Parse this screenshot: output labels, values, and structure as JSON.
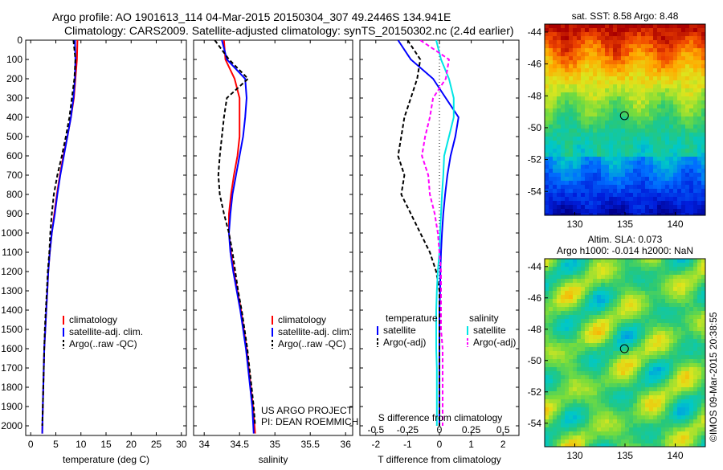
{
  "header": {
    "line1": "Argo profile: AO 1901613_114 04-Mar-2015 20150304_307 49.2446S 134.941E",
    "line2": "Climatology: CARS2009. Satellite-adjusted climatology: synTS_20150302.nc (2.4d earlier)"
  },
  "colors": {
    "climatology": "#ff0000",
    "satellite": "#0000ff",
    "argo": "#000000",
    "sal_satellite": "#00e5e5",
    "sal_argo": "#ff00ff"
  },
  "credits": {
    "line1": "US ARGO PROJECT",
    "line2": "PI: DEAN ROEMMICH"
  },
  "imos_stamp": "©IMOS 09-Mar-2015 20:38:55",
  "chart_data": [
    {
      "type": "line",
      "panel": "temperature",
      "xlabel": "temperature (deg C)",
      "xlim": [
        -1,
        31
      ],
      "xticks": [
        "0",
        "5",
        "10",
        "15",
        "20",
        "25",
        "30"
      ],
      "xtick_values": [
        0,
        5,
        10,
        15,
        20,
        25,
        30
      ],
      "ylim": [
        2050,
        0
      ],
      "yticks": [
        "0",
        "100",
        "200",
        "300",
        "400",
        "500",
        "600",
        "700",
        "800",
        "900",
        "1000",
        "1100",
        "1200",
        "1300",
        "1400",
        "1500",
        "1600",
        "1700",
        "1800",
        "1900",
        "2000"
      ],
      "ytick_values": [
        0,
        100,
        200,
        300,
        400,
        500,
        600,
        700,
        800,
        900,
        1000,
        1100,
        1200,
        1300,
        1400,
        1500,
        1600,
        1700,
        1800,
        1900,
        2000
      ],
      "legend": [
        "climatology",
        "satellite-adj. clim.",
        "Argo(..raw -QC)"
      ],
      "series": [
        {
          "name": "climatology",
          "style": "solid",
          "color": "#ff0000",
          "x": [
            9.3,
            9.2,
            8.9,
            8.6,
            8.0,
            7.3,
            6.5,
            5.8,
            5.2,
            4.7,
            4.2,
            3.8,
            3.5,
            3.3,
            3.1,
            2.9,
            2.7,
            2.6,
            2.5,
            2.4,
            2.3
          ],
          "y": [
            0,
            100,
            200,
            300,
            400,
            500,
            600,
            700,
            800,
            900,
            1000,
            1100,
            1200,
            1300,
            1400,
            1500,
            1600,
            1700,
            1800,
            1900,
            2040
          ]
        },
        {
          "name": "satellite-adj. clim.",
          "style": "solid",
          "color": "#0000ff",
          "x": [
            8.8,
            8.9,
            8.8,
            8.5,
            8.0,
            7.3,
            6.6,
            5.9,
            5.3,
            4.8,
            4.2,
            3.8,
            3.5,
            3.3,
            3.1,
            2.9,
            2.7,
            2.6,
            2.5,
            2.4,
            2.3
          ],
          "y": [
            0,
            100,
            200,
            300,
            400,
            500,
            600,
            700,
            800,
            900,
            1000,
            1100,
            1200,
            1300,
            1400,
            1500,
            1600,
            1700,
            1800,
            1900,
            2040
          ]
        },
        {
          "name": "Argo(..raw -QC)",
          "style": "dashed",
          "color": "#000000",
          "x": [
            8.5,
            8.9,
            8.7,
            8.2,
            7.7,
            7.0,
            6.2,
            5.3,
            4.6,
            4.2,
            3.9,
            3.7,
            3.4,
            3.2,
            3.0,
            2.8,
            2.7,
            2.6,
            2.5,
            2.4,
            2.3
          ],
          "y": [
            0,
            100,
            200,
            300,
            400,
            500,
            600,
            700,
            800,
            900,
            1000,
            1100,
            1200,
            1300,
            1400,
            1500,
            1600,
            1700,
            1800,
            1900,
            2000
          ]
        }
      ]
    },
    {
      "type": "line",
      "panel": "salinity",
      "xlabel": "salinity",
      "xlim": [
        33.85,
        36.1
      ],
      "xticks": [
        "34",
        "34.5",
        "35",
        "35.5",
        "36"
      ],
      "xtick_values": [
        34,
        34.5,
        35,
        35.5,
        36
      ],
      "ylim": [
        2050,
        0
      ],
      "legend": [
        "climatology",
        "satellite-adj. clim.",
        "Argo(..raw -QC)"
      ],
      "series": [
        {
          "name": "climatology",
          "style": "solid",
          "color": "#ff0000",
          "x": [
            34.28,
            34.3,
            34.43,
            34.5,
            34.5,
            34.5,
            34.47,
            34.42,
            34.38,
            34.35,
            34.35,
            34.38,
            34.42,
            34.47,
            34.52,
            34.56,
            34.6,
            34.63,
            34.66,
            34.69,
            34.72
          ],
          "y": [
            0,
            100,
            200,
            300,
            400,
            500,
            600,
            700,
            800,
            900,
            1000,
            1100,
            1200,
            1300,
            1400,
            1500,
            1600,
            1700,
            1800,
            1900,
            2040
          ]
        },
        {
          "name": "satellite-adj. clim.",
          "style": "solid",
          "color": "#0000ff",
          "x": [
            34.25,
            34.32,
            34.58,
            34.6,
            34.58,
            34.55,
            34.5,
            34.45,
            34.4,
            34.37,
            34.35,
            34.37,
            34.41,
            34.46,
            34.51,
            34.55,
            34.59,
            34.62,
            34.65,
            34.68,
            34.7
          ],
          "y": [
            0,
            100,
            200,
            300,
            400,
            500,
            600,
            700,
            800,
            900,
            1000,
            1100,
            1200,
            1300,
            1400,
            1500,
            1600,
            1700,
            1800,
            1900,
            2040
          ]
        },
        {
          "name": "Argo(..raw -QC)",
          "style": "dashed",
          "color": "#000000",
          "x": [
            34.15,
            34.35,
            34.62,
            34.32,
            34.28,
            34.25,
            34.22,
            34.2,
            34.22,
            34.28,
            34.35,
            34.4,
            34.44,
            34.48,
            34.53,
            34.57,
            34.61,
            34.64,
            34.67,
            34.7,
            34.72
          ],
          "y": [
            0,
            100,
            200,
            300,
            400,
            500,
            600,
            700,
            800,
            900,
            1000,
            1100,
            1200,
            1300,
            1400,
            1500,
            1600,
            1700,
            1800,
            1900,
            2000
          ]
        }
      ]
    },
    {
      "type": "line",
      "panel": "difference",
      "xlabel": "T difference from climatology",
      "top_xlabel": "S difference from climatology",
      "xlim": [
        -2.5,
        2.5
      ],
      "xticks": [
        "-2",
        "-1",
        "0",
        "1",
        "2"
      ],
      "xtick_values": [
        -2,
        -1,
        0,
        1,
        2
      ],
      "top_xticks": [
        "-0.5",
        "-0.25",
        "0",
        "0.25",
        "0.5"
      ],
      "top_xtick_values": [
        -0.5,
        -0.25,
        0,
        0.25,
        0.5
      ],
      "legend_groups": [
        {
          "title": "temperature",
          "items": [
            "satellite",
            "Argo(-adj)"
          ]
        },
        {
          "title": "salinity",
          "items": [
            "satellite",
            "Argo(-adj)"
          ]
        }
      ],
      "ylim": [
        2050,
        0
      ],
      "series": [
        {
          "name": "temperature satellite",
          "style": "solid",
          "color": "#0000ff",
          "x": [
            -1.3,
            -0.9,
            -0.2,
            0.2,
            0.6,
            0.5,
            0.35,
            0.25,
            0.18,
            0.12,
            0.08,
            0.05,
            0.03,
            0.02,
            0.0,
            0.0,
            0.0,
            0.0,
            0.0,
            0.0
          ],
          "y": [
            0,
            100,
            200,
            300,
            400,
            500,
            600,
            700,
            800,
            900,
            1000,
            1100,
            1200,
            1300,
            1400,
            1500,
            1600,
            1700,
            1800,
            2000
          ]
        },
        {
          "name": "temperature Argo(-adj)",
          "style": "dashed",
          "color": "#000000",
          "x": [
            -1.0,
            -0.6,
            -0.7,
            -0.9,
            -1.1,
            -1.2,
            -1.3,
            -1.1,
            -1.2,
            -0.9,
            -0.6,
            -0.3,
            -0.1,
            0.0,
            0.0,
            0.0,
            0.0,
            0.0,
            0.0,
            0.0
          ],
          "y": [
            0,
            100,
            200,
            300,
            400,
            500,
            600,
            700,
            800,
            900,
            1000,
            1100,
            1200,
            1300,
            1400,
            1500,
            1600,
            1700,
            1800,
            2000
          ]
        },
        {
          "name": "salinity satellite",
          "style": "solid",
          "color": "#00e5e5",
          "x": [
            -0.1,
            0.05,
            0.3,
            0.45,
            0.45,
            0.3,
            0.15,
            0.12,
            0.08,
            0.05,
            0.02,
            0.0,
            -0.05,
            -0.08,
            -0.1,
            -0.1,
            -0.1,
            -0.08,
            -0.08,
            -0.08
          ],
          "y": [
            0,
            100,
            200,
            300,
            400,
            500,
            600,
            700,
            800,
            900,
            1000,
            1100,
            1200,
            1300,
            1400,
            1500,
            1600,
            1700,
            1800,
            2000
          ]
        },
        {
          "name": "salinity Argo(-adj)",
          "style": "dashed",
          "color": "#ff00ff",
          "x": [
            -0.6,
            0.3,
            0.2,
            -0.2,
            -0.3,
            -0.45,
            -0.55,
            -0.35,
            -0.3,
            -0.15,
            -0.05,
            0.0,
            0.05,
            0.05,
            0.05,
            0.05,
            0.1,
            0.1,
            0.1,
            0.1
          ],
          "y": [
            0,
            100,
            200,
            300,
            400,
            500,
            600,
            700,
            800,
            900,
            1000,
            1100,
            1200,
            1300,
            1400,
            1500,
            1600,
            1700,
            1800,
            2000
          ]
        }
      ]
    },
    {
      "type": "heatmap",
      "panel": "sst_map",
      "title": "sat. SST: 8.58 Argo: 8.48",
      "xlim": [
        127,
        143
      ],
      "ylim": [
        -55.5,
        -43.5
      ],
      "xticks": [
        "130",
        "135",
        "140"
      ],
      "xtick_values": [
        130,
        135,
        140
      ],
      "yticks": [
        "-44",
        "-46",
        "-48",
        "-50",
        "-52",
        "-54"
      ],
      "ytick_values": [
        -44,
        -46,
        -48,
        -50,
        -52,
        -54
      ],
      "marker": {
        "lon": 134.941,
        "lat": -49.2446
      }
    },
    {
      "type": "heatmap",
      "panel": "sla_map",
      "title": "Altim. SLA: 0.073",
      "subtitle": "Argo h1000: -0.014 h2000: NaN",
      "xlim": [
        127,
        143
      ],
      "ylim": [
        -55.5,
        -43.5
      ],
      "xticks": [
        "130",
        "135",
        "140"
      ],
      "xtick_values": [
        130,
        135,
        140
      ],
      "yticks": [
        "-44",
        "-46",
        "-48",
        "-50",
        "-52",
        "-54"
      ],
      "ytick_values": [
        -44,
        -46,
        -48,
        -50,
        -52,
        -54
      ],
      "marker": {
        "lon": 134.941,
        "lat": -49.2446
      }
    }
  ]
}
